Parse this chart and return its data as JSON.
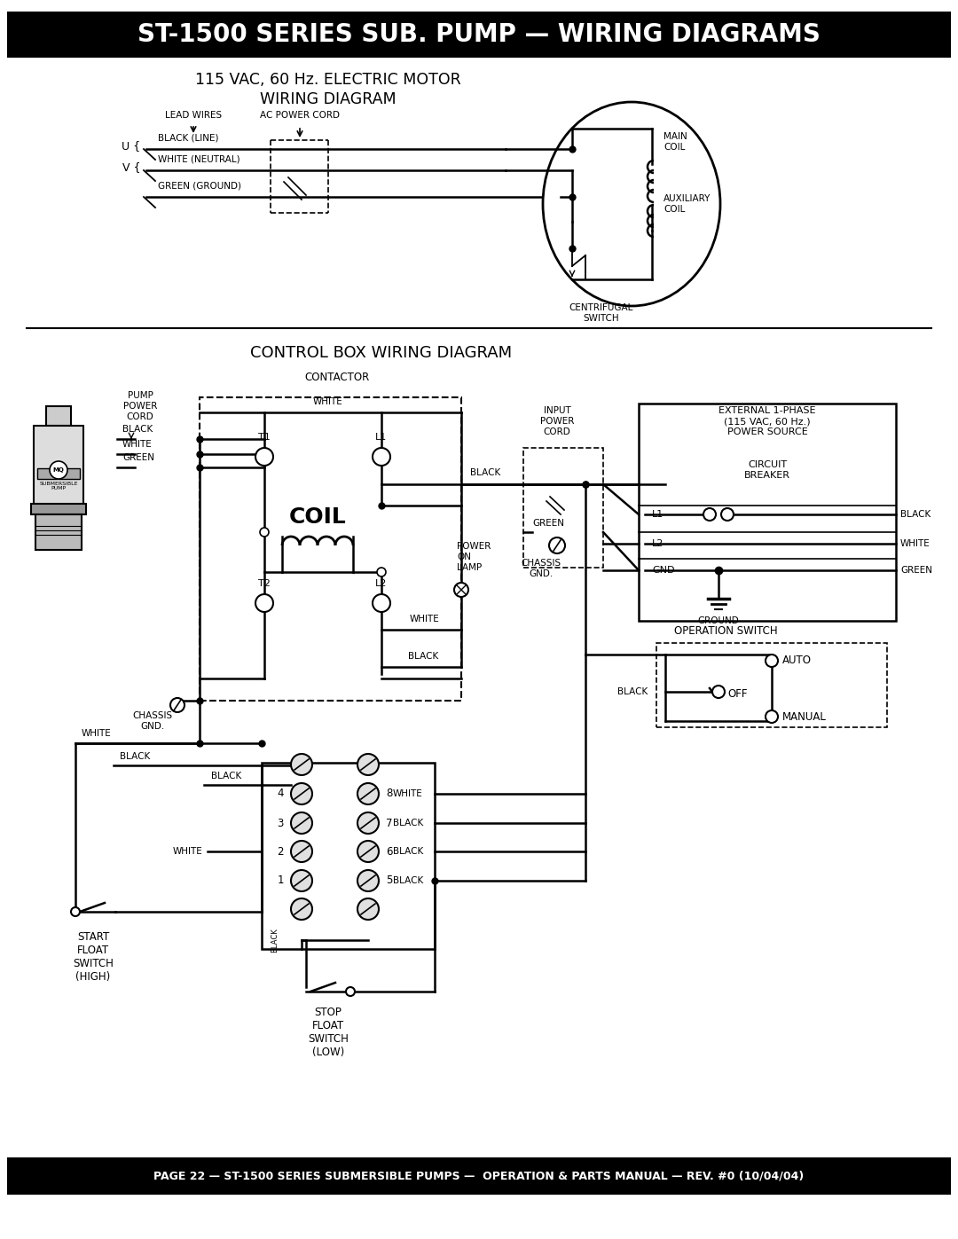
{
  "title_bar_text": "ST-1500 SERIES SUB. PUMP — WIRING DIAGRAMS",
  "footer_text": "PAGE 22 — ST-1500 SERIES SUBMERSIBLE PUMPS —  OPERATION & PARTS MANUAL — REV. #0 (10/04/04)",
  "top_diagram_title1": "115 VAC, 60 Hz. ELECTRIC MOTOR",
  "top_diagram_title2": "WIRING DIAGRAM",
  "bottom_diagram_title": "CONTROL BOX WIRING DIAGRAM",
  "bg_color": "#ffffff"
}
